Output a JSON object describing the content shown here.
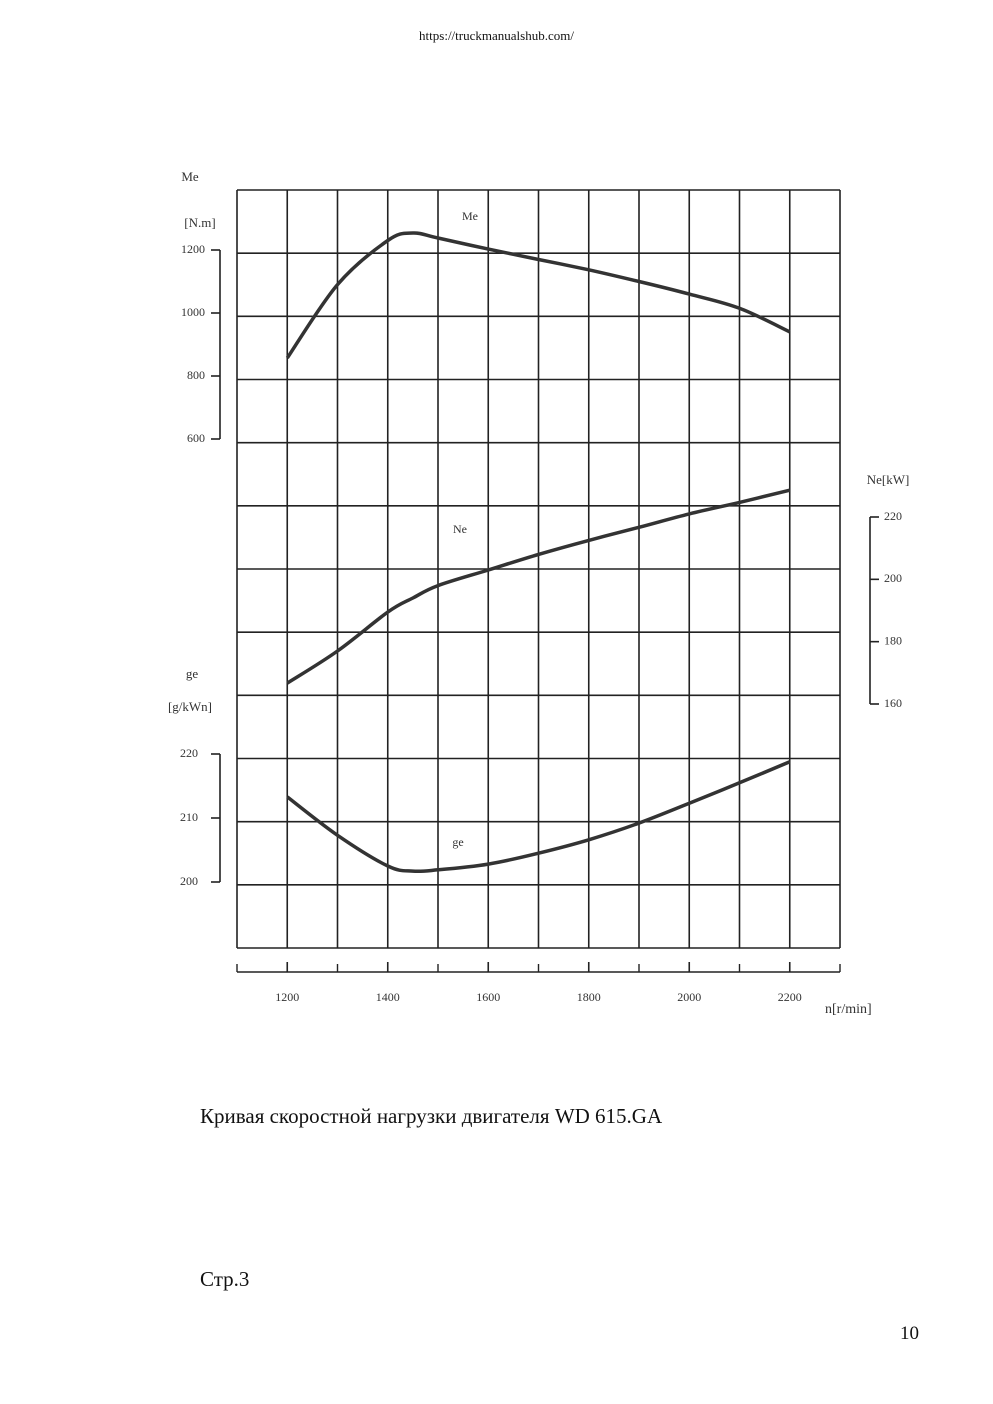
{
  "header": {
    "url": "https://truckmanualshub.com/"
  },
  "chart_data": {
    "type": "line",
    "x": [
      1200,
      1300,
      1400,
      1450,
      1500,
      1600,
      1700,
      1800,
      1900,
      2000,
      2100,
      2200
    ],
    "xlim": [
      1100,
      2300
    ],
    "xticks": [
      1200,
      1400,
      1600,
      1800,
      2000,
      2200
    ],
    "xlabel": "n[r/min]",
    "grid": true,
    "series": [
      {
        "name": "Me",
        "axis_title": "Me",
        "unit": "[N.m]",
        "color": "#333333",
        "ylim": [
          600,
          1200
        ],
        "yticks": [
          600,
          800,
          1000,
          1200
        ],
        "values": [
          857,
          1090,
          1230,
          1254,
          1238,
          1203,
          1170,
          1137,
          1100,
          1060,
          1015,
          940
        ]
      },
      {
        "name": "Ne",
        "axis_title": "Ne[kW]",
        "color": "#333333",
        "ylim": [
          160,
          220
        ],
        "yticks": [
          160,
          180,
          200,
          220
        ],
        "values": [
          166.7,
          177,
          189.5,
          194,
          198,
          203,
          208,
          212.5,
          216.7,
          221,
          224.7,
          228.6
        ]
      },
      {
        "name": "ge",
        "axis_title": "ge",
        "unit": "[g/kWn]",
        "color": "#333333",
        "ylim": [
          200,
          220
        ],
        "yticks": [
          200,
          210,
          220
        ],
        "values": [
          213.3,
          207.3,
          202.5,
          201.7,
          201.9,
          202.8,
          204.5,
          206.6,
          209.2,
          212.3,
          215.5,
          218.8
        ]
      }
    ]
  },
  "caption": "Кривая скоростной нагрузки двигателя WD 615.GA",
  "section": "Стр.3",
  "page_number": "10"
}
